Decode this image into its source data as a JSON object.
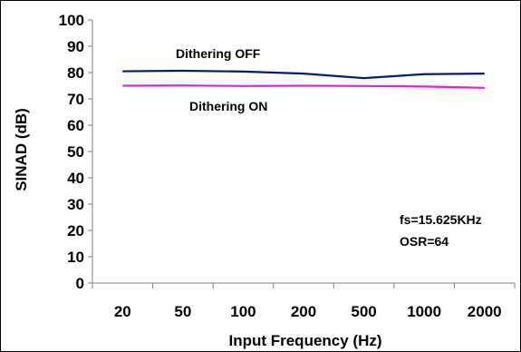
{
  "chart_data": {
    "type": "line",
    "categories": [
      "20",
      "50",
      "100",
      "200",
      "500",
      "1000",
      "2000"
    ],
    "series": [
      {
        "name": "Dithering OFF",
        "values": [
          80.5,
          80.7,
          80.4,
          79.6,
          77.9,
          79.4,
          79.6
        ],
        "color": "#0a1a6b"
      },
      {
        "name": "Dithering ON",
        "values": [
          75.0,
          75.1,
          74.9,
          75.0,
          74.9,
          74.7,
          74.2
        ],
        "color": "#e020e0"
      }
    ],
    "xlabel": "Input Frequency (Hz)",
    "ylabel": "SINAD (dB)",
    "ylim": [
      0,
      100
    ],
    "yticks": [
      0,
      10,
      20,
      30,
      40,
      50,
      60,
      70,
      80,
      90,
      100
    ],
    "annotations": [
      "fs=15.625KHz",
      "OSR=64"
    ],
    "grid": false,
    "legend": "inline labels"
  }
}
